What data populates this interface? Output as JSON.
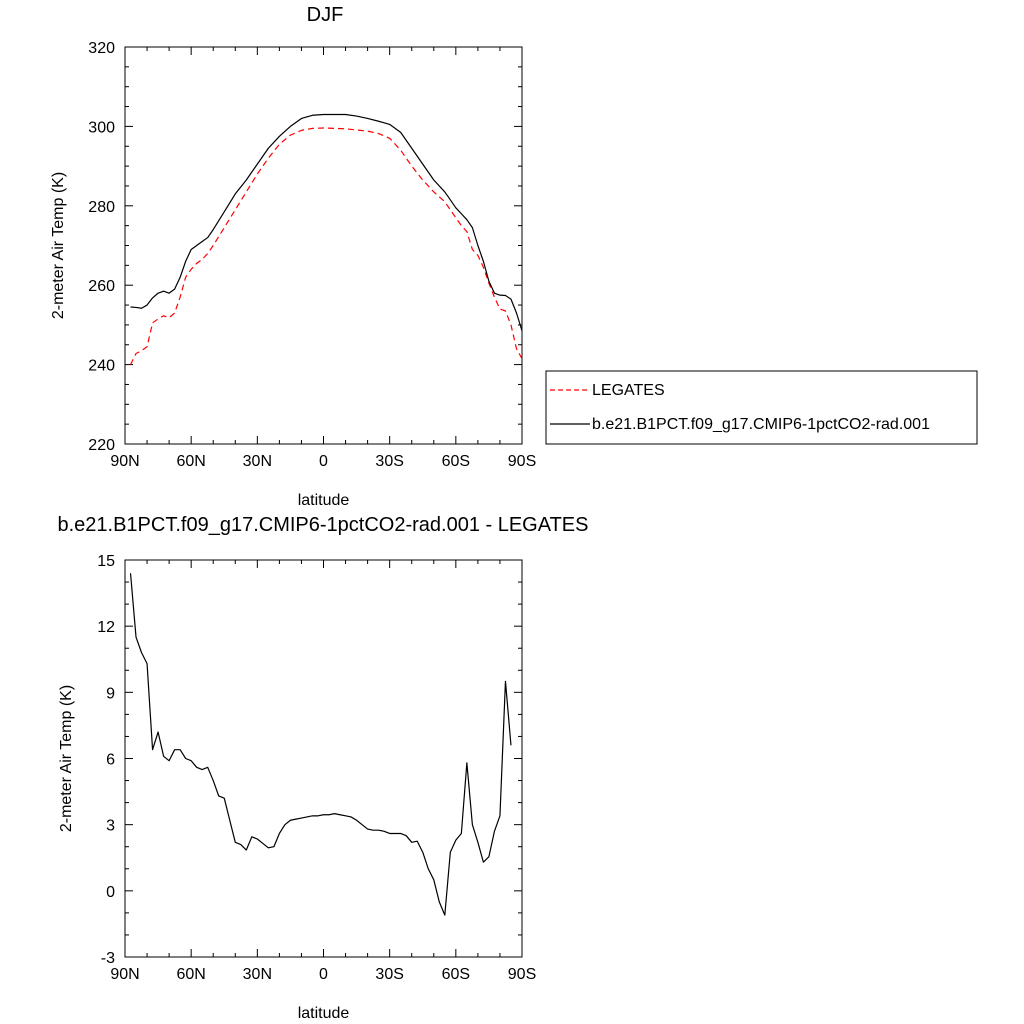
{
  "chart_data": [
    {
      "type": "line",
      "title": "DJF",
      "xlabel": "latitude",
      "ylabel": "2-meter Air Temp (K)",
      "x_ticks": [
        "90N",
        "60N",
        "30N",
        "0",
        "30S",
        "60S",
        "90S"
      ],
      "x_tick_values": [
        90,
        60,
        30,
        0,
        -30,
        -60,
        -90
      ],
      "y_ticks": [
        "220",
        "240",
        "260",
        "280",
        "300",
        "320"
      ],
      "y_tick_values": [
        220,
        240,
        260,
        280,
        300,
        320
      ],
      "xlim": [
        90,
        -90
      ],
      "ylim": [
        220,
        320
      ],
      "legend": {
        "placement": "right",
        "entries": [
          "LEGATES",
          "b.e21.B1PCT.f09_g17.CMIP6-1pctCO2-rad.001"
        ]
      },
      "series": [
        {
          "name": "LEGATES",
          "color": "#ff0000",
          "dash": "dashed",
          "points": [
            [
              87.5,
              240.0
            ],
            [
              85,
              242.8
            ],
            [
              82.5,
              243.5
            ],
            [
              80,
              244.5
            ],
            [
              77.5,
              250.5
            ],
            [
              75,
              251.5
            ],
            [
              72.5,
              252.3
            ],
            [
              70,
              251.8
            ],
            [
              67.5,
              253.0
            ],
            [
              65,
              257.0
            ],
            [
              62.5,
              262.0
            ],
            [
              60,
              264.0
            ],
            [
              57.5,
              265.5
            ],
            [
              55,
              266.5
            ],
            [
              52.5,
              268.0
            ],
            [
              50,
              270.0
            ],
            [
              45,
              274.5
            ],
            [
              40,
              279.0
            ],
            [
              35,
              283.5
            ],
            [
              30,
              288.0
            ],
            [
              25,
              292.0
            ],
            [
              20,
              295.5
            ],
            [
              15,
              297.8
            ],
            [
              10,
              299.0
            ],
            [
              5,
              299.5
            ],
            [
              0,
              299.6
            ],
            [
              -5,
              299.5
            ],
            [
              -10,
              299.4
            ],
            [
              -15,
              299.1
            ],
            [
              -20,
              298.8
            ],
            [
              -25,
              298.2
            ],
            [
              -30,
              297.0
            ],
            [
              -35,
              294.0
            ],
            [
              -40,
              290.0
            ],
            [
              -45,
              286.5
            ],
            [
              -50,
              283.5
            ],
            [
              -55,
              281.0
            ],
            [
              -57.5,
              279.0
            ],
            [
              -60,
              277.0
            ],
            [
              -62.5,
              275.0
            ],
            [
              -65,
              273.5
            ],
            [
              -67.5,
              269.0
            ],
            [
              -70,
              267.5
            ],
            [
              -72.5,
              264.5
            ],
            [
              -75,
              260.5
            ],
            [
              -77.5,
              257.0
            ],
            [
              -80,
              254.0
            ],
            [
              -82.5,
              253.5
            ],
            [
              -85,
              250.0
            ],
            [
              -87.5,
              244.0
            ],
            [
              -90,
              241.5
            ]
          ]
        },
        {
          "name": "b.e21.B1PCT.f09_g17.CMIP6-1pctCO2-rad.001",
          "color": "#000000",
          "dash": "solid",
          "points": [
            [
              87.5,
              254.5
            ],
            [
              85,
              254.4
            ],
            [
              82.5,
              254.2
            ],
            [
              80,
              255.0
            ],
            [
              77.5,
              256.8
            ],
            [
              75,
              258.0
            ],
            [
              72.5,
              258.5
            ],
            [
              70,
              258.0
            ],
            [
              67.5,
              259.0
            ],
            [
              65,
              262.0
            ],
            [
              62.5,
              266.0
            ],
            [
              60,
              269.0
            ],
            [
              57.5,
              270.0
            ],
            [
              55,
              271.0
            ],
            [
              52.5,
              272.0
            ],
            [
              50,
              274.0
            ],
            [
              45,
              278.5
            ],
            [
              40,
              283.0
            ],
            [
              35,
              286.5
            ],
            [
              30,
              290.5
            ],
            [
              25,
              294.5
            ],
            [
              20,
              297.5
            ],
            [
              15,
              300.0
            ],
            [
              10,
              302.0
            ],
            [
              5,
              302.8
            ],
            [
              0,
              303.0
            ],
            [
              -5,
              303.0
            ],
            [
              -10,
              303.0
            ],
            [
              -15,
              302.6
            ],
            [
              -20,
              302.0
            ],
            [
              -25,
              301.3
            ],
            [
              -30,
              300.5
            ],
            [
              -35,
              298.5
            ],
            [
              -40,
              294.5
            ],
            [
              -45,
              290.5
            ],
            [
              -50,
              286.5
            ],
            [
              -55,
              283.5
            ],
            [
              -57.5,
              281.5
            ],
            [
              -60,
              279.5
            ],
            [
              -62.5,
              278.0
            ],
            [
              -65,
              276.5
            ],
            [
              -67.5,
              274.5
            ],
            [
              -70,
              270.0
            ],
            [
              -72.5,
              266.0
            ],
            [
              -75,
              261.0
            ],
            [
              -77.5,
              258.0
            ],
            [
              -80,
              257.5
            ],
            [
              -82.5,
              257.4
            ],
            [
              -85,
              256.5
            ],
            [
              -87.5,
              253.0
            ],
            [
              -90,
              248.5
            ]
          ]
        }
      ]
    },
    {
      "type": "line",
      "title": "b.e21.B1PCT.f09_g17.CMIP6-1pctCO2-rad.001 - LEGATES",
      "xlabel": "latitude",
      "ylabel": "2-meter Air Temp (K)",
      "x_ticks": [
        "90N",
        "60N",
        "30N",
        "0",
        "30S",
        "60S",
        "90S"
      ],
      "x_tick_values": [
        90,
        60,
        30,
        0,
        -30,
        -60,
        -90
      ],
      "y_ticks": [
        "-3",
        "0",
        "3",
        "6",
        "9",
        "12",
        "15"
      ],
      "y_tick_values": [
        -3,
        0,
        3,
        6,
        9,
        12,
        15
      ],
      "xlim": [
        90,
        -90
      ],
      "ylim": [
        -3,
        15
      ],
      "series": [
        {
          "color": "#000000",
          "dash": "solid",
          "points": [
            [
              87.5,
              14.4
            ],
            [
              85,
              11.5
            ],
            [
              82.5,
              10.8
            ],
            [
              80,
              10.3
            ],
            [
              77.5,
              6.4
            ],
            [
              75,
              7.2
            ],
            [
              72.5,
              6.1
            ],
            [
              70,
              5.9
            ],
            [
              67.5,
              6.4
            ],
            [
              65,
              6.4
            ],
            [
              62.5,
              6.0
            ],
            [
              60,
              5.9
            ],
            [
              57.5,
              5.6
            ],
            [
              55,
              5.5
            ],
            [
              52.5,
              5.6
            ],
            [
              50,
              5.0
            ],
            [
              47.5,
              4.3
            ],
            [
              45,
              4.2
            ],
            [
              42.5,
              3.2
            ],
            [
              40,
              2.2
            ],
            [
              37.5,
              2.1
            ],
            [
              35,
              1.85
            ],
            [
              32.5,
              2.45
            ],
            [
              30,
              2.35
            ],
            [
              27.5,
              2.15
            ],
            [
              25,
              1.95
            ],
            [
              22.5,
              2.0
            ],
            [
              20,
              2.6
            ],
            [
              17.5,
              3.0
            ],
            [
              15,
              3.2
            ],
            [
              12.5,
              3.25
            ],
            [
              10,
              3.3
            ],
            [
              7.5,
              3.35
            ],
            [
              5,
              3.4
            ],
            [
              2.5,
              3.4
            ],
            [
              0,
              3.45
            ],
            [
              -2.5,
              3.45
            ],
            [
              -5,
              3.5
            ],
            [
              -7.5,
              3.45
            ],
            [
              -10,
              3.4
            ],
            [
              -12.5,
              3.35
            ],
            [
              -15,
              3.2
            ],
            [
              -17.5,
              3.0
            ],
            [
              -20,
              2.8
            ],
            [
              -22.5,
              2.75
            ],
            [
              -25,
              2.75
            ],
            [
              -27.5,
              2.7
            ],
            [
              -30,
              2.6
            ],
            [
              -32.5,
              2.6
            ],
            [
              -35,
              2.6
            ],
            [
              -37.5,
              2.5
            ],
            [
              -40,
              2.2
            ],
            [
              -42.5,
              2.25
            ],
            [
              -45,
              1.75
            ],
            [
              -47.5,
              1.0
            ],
            [
              -50,
              0.5
            ],
            [
              -52.5,
              -0.5
            ],
            [
              -55,
              -1.1
            ],
            [
              -57.5,
              1.75
            ],
            [
              -60,
              2.3
            ],
            [
              -62.5,
              2.6
            ],
            [
              -65,
              5.8
            ],
            [
              -67.5,
              3.0
            ],
            [
              -70,
              2.2
            ],
            [
              -72.5,
              1.3
            ],
            [
              -75,
              1.55
            ],
            [
              -77.5,
              2.7
            ],
            [
              -80,
              3.4
            ],
            [
              -82.5,
              9.5
            ],
            [
              -85,
              6.6
            ]
          ]
        }
      ]
    }
  ]
}
